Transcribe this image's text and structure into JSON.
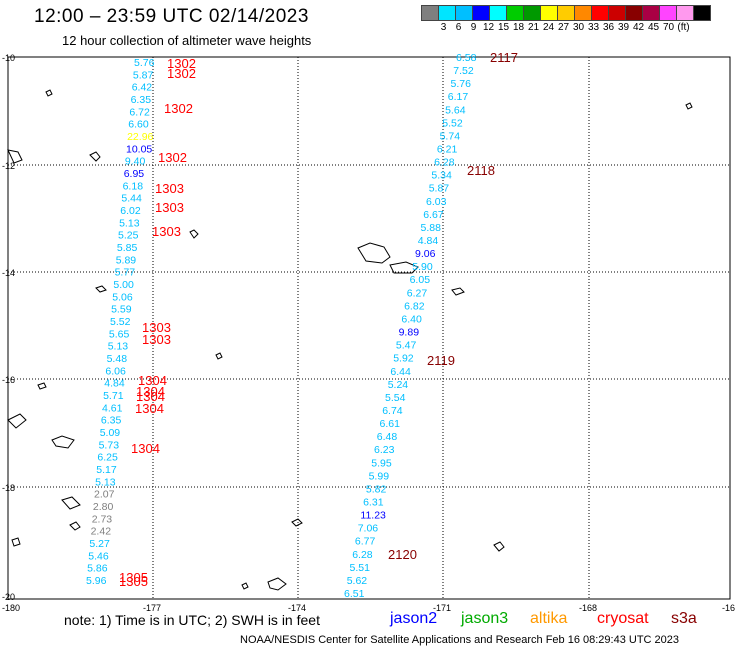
{
  "header": {
    "title": "12:00 – 23:59 UTC 02/14/2023",
    "subtitle": "12 hour collection of altimeter wave heights"
  },
  "colorbar": {
    "colors": [
      "#7f7f7f",
      "#00e5ff",
      "#00bfff",
      "#0000ff",
      "#00ffff",
      "#00cc00",
      "#009900",
      "#ffff00",
      "#ffcc00",
      "#ff8800",
      "#ff0000",
      "#cc0000",
      "#880000",
      "#aa0044",
      "#ff44ff",
      "#ff99ee",
      "#000000"
    ],
    "labels": [
      "",
      "3",
      "6",
      "9",
      "12",
      "15",
      "18",
      "21",
      "24",
      "27",
      "30",
      "33",
      "36",
      "39",
      "42",
      "45",
      "70",
      "(ft)"
    ]
  },
  "axes": {
    "y_ticks": [
      "-10",
      "-12",
      "-14",
      "-16",
      "-18",
      "-20"
    ],
    "x_ticks": [
      "-180",
      "-177",
      "-174",
      "-171",
      "-168",
      "-16"
    ]
  },
  "tracks": [
    {
      "id": "1302",
      "labels": [
        {
          "t": "1302",
          "pos": "a"
        },
        {
          "t": "1302",
          "pos": "b"
        },
        {
          "t": "1302",
          "pos": "c"
        },
        {
          "t": "1302",
          "pos": "d"
        }
      ]
    },
    {
      "id": "1303",
      "labels": [
        "1303",
        "1303",
        "1303",
        "1303",
        "1303"
      ]
    },
    {
      "id": "1304",
      "labels": [
        "1304",
        "1304",
        "1304",
        "1304",
        "1304"
      ]
    },
    {
      "id": "1305",
      "labels": [
        "1305",
        "1305"
      ]
    },
    {
      "id": "2117-2120",
      "labels": [
        "2117",
        "2118",
        "2119",
        "2120"
      ]
    }
  ],
  "readings_left": [
    {
      "v": "5.76",
      "c": "#00bfff"
    },
    {
      "v": "5.87",
      "c": "#00bfff"
    },
    {
      "v": "6.42",
      "c": "#00bfff"
    },
    {
      "v": "6.35",
      "c": "#00bfff"
    },
    {
      "v": "6.72",
      "c": "#00bfff"
    },
    {
      "v": "6.60",
      "c": "#00bfff"
    },
    {
      "v": "22.96",
      "c": "#ffff00"
    },
    {
      "v": "10.05",
      "c": "#0000ff"
    },
    {
      "v": "9.40",
      "c": "#00bfff"
    },
    {
      "v": "6.95",
      "c": "#0000ff"
    },
    {
      "v": "6.18",
      "c": "#00bfff"
    },
    {
      "v": "5.44",
      "c": "#00bfff"
    },
    {
      "v": "6.02",
      "c": "#00bfff"
    },
    {
      "v": "5.13",
      "c": "#00bfff"
    },
    {
      "v": "5.25",
      "c": "#00bfff"
    },
    {
      "v": "5.85",
      "c": "#00bfff"
    },
    {
      "v": "5.89",
      "c": "#00bfff"
    },
    {
      "v": "5.77",
      "c": "#00bfff"
    },
    {
      "v": "5.00",
      "c": "#00bfff"
    },
    {
      "v": "5.06",
      "c": "#00bfff"
    },
    {
      "v": "5.59",
      "c": "#00bfff"
    },
    {
      "v": "5.52",
      "c": "#00bfff"
    },
    {
      "v": "5.65",
      "c": "#00bfff"
    },
    {
      "v": "5.13",
      "c": "#00bfff"
    },
    {
      "v": "5.48",
      "c": "#00bfff"
    },
    {
      "v": "6.06",
      "c": "#00bfff"
    },
    {
      "v": "4.84",
      "c": "#00bfff"
    },
    {
      "v": "5.71",
      "c": "#00bfff"
    },
    {
      "v": "4.61",
      "c": "#00bfff"
    },
    {
      "v": "6.35",
      "c": "#00bfff"
    },
    {
      "v": "5.09",
      "c": "#00bfff"
    },
    {
      "v": "5.73",
      "c": "#00bfff"
    },
    {
      "v": "6.25",
      "c": "#00bfff"
    },
    {
      "v": "5.17",
      "c": "#00bfff"
    },
    {
      "v": "5.13",
      "c": "#00bfff"
    },
    {
      "v": "2.07",
      "c": "#7f7f7f"
    },
    {
      "v": "2.80",
      "c": "#7f7f7f"
    },
    {
      "v": "2.73",
      "c": "#7f7f7f"
    },
    {
      "v": "2.42",
      "c": "#7f7f7f"
    },
    {
      "v": "5.27",
      "c": "#00bfff"
    },
    {
      "v": "5.46",
      "c": "#00bfff"
    },
    {
      "v": "5.86",
      "c": "#00bfff"
    },
    {
      "v": "5.96",
      "c": "#00bfff"
    }
  ],
  "readings_right": [
    {
      "v": "6.58",
      "c": "#00bfff"
    },
    {
      "v": "7.52",
      "c": "#00bfff"
    },
    {
      "v": "5.76",
      "c": "#00bfff"
    },
    {
      "v": "6.17",
      "c": "#00bfff"
    },
    {
      "v": "5.64",
      "c": "#00bfff"
    },
    {
      "v": "5.52",
      "c": "#00bfff"
    },
    {
      "v": "5.74",
      "c": "#00bfff"
    },
    {
      "v": "6.21",
      "c": "#00bfff"
    },
    {
      "v": "6.28",
      "c": "#00bfff"
    },
    {
      "v": "5.34",
      "c": "#00bfff"
    },
    {
      "v": "5.87",
      "c": "#00bfff"
    },
    {
      "v": "6.03",
      "c": "#00bfff"
    },
    {
      "v": "6.67",
      "c": "#00bfff"
    },
    {
      "v": "5.88",
      "c": "#00bfff"
    },
    {
      "v": "4.84",
      "c": "#00bfff"
    },
    {
      "v": "9.06",
      "c": "#0000ff"
    },
    {
      "v": "5.90",
      "c": "#00bfff"
    },
    {
      "v": "6.05",
      "c": "#00bfff"
    },
    {
      "v": "6.27",
      "c": "#00bfff"
    },
    {
      "v": "6.82",
      "c": "#00bfff"
    },
    {
      "v": "6.40",
      "c": "#00bfff"
    },
    {
      "v": "9.89",
      "c": "#0000ff"
    },
    {
      "v": "5.47",
      "c": "#00bfff"
    },
    {
      "v": "5.92",
      "c": "#00bfff"
    },
    {
      "v": "6.44",
      "c": "#00bfff"
    },
    {
      "v": "5.24",
      "c": "#00bfff"
    },
    {
      "v": "5.54",
      "c": "#00bfff"
    },
    {
      "v": "6.74",
      "c": "#00bfff"
    },
    {
      "v": "6.61",
      "c": "#00bfff"
    },
    {
      "v": "6.48",
      "c": "#00bfff"
    },
    {
      "v": "6.23",
      "c": "#00bfff"
    },
    {
      "v": "5.95",
      "c": "#00bfff"
    },
    {
      "v": "5.99",
      "c": "#00bfff"
    },
    {
      "v": "5.82",
      "c": "#00bfff"
    },
    {
      "v": "6.31",
      "c": "#00bfff"
    },
    {
      "v": "11.23",
      "c": "#0000ff"
    },
    {
      "v": "7.06",
      "c": "#00bfff"
    },
    {
      "v": "6.77",
      "c": "#00bfff"
    },
    {
      "v": "6.28",
      "c": "#00bfff"
    },
    {
      "v": "5.51",
      "c": "#00bfff"
    },
    {
      "v": "5.62",
      "c": "#00bfff"
    },
    {
      "v": "6.51",
      "c": "#00bfff"
    }
  ],
  "footer": {
    "note": "note:  1) Time is in UTC;  2) SWH is in feet",
    "satellites": [
      {
        "name": "jason2",
        "color": "#0000ff"
      },
      {
        "name": "jason3",
        "color": "#00aa00"
      },
      {
        "name": "altika",
        "color": "#ff9900"
      },
      {
        "name": "cryosat",
        "color": "#ff0000"
      },
      {
        "name": "s3a",
        "color": "#880000"
      }
    ],
    "credit": "NOAA/NESDIS Center for Satellite Applications and Research    Feb 16 08:29:43 UTC 2023"
  }
}
